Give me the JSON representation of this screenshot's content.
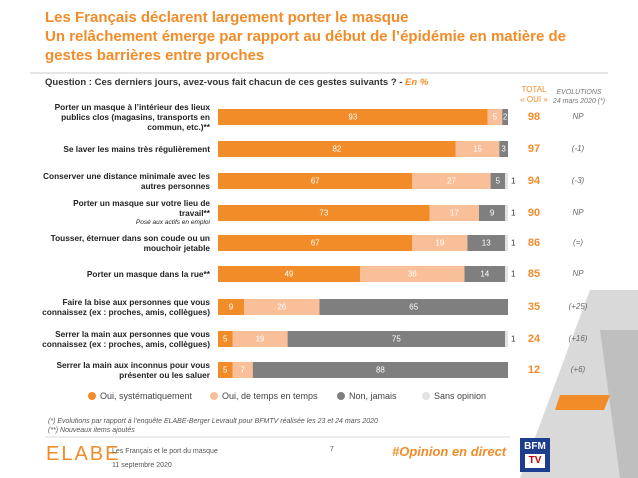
{
  "chart_data": {
    "type": "bar",
    "orientation": "horizontal",
    "stacked": true,
    "title": "Les Français déclarent largement porter le masque",
    "subtitle": "Un relâchement émerge par rapport au début de l’épidémie en matière de gestes barrières entre proches",
    "question": "Question : Ces derniers jours, avez-vous fait chacun de ces gestes suivants ? -",
    "unit": "En %",
    "categories": [
      "Porter un masque à l’intérieur des lieux publics clos (magasins, transports en commun, etc.)**",
      "Se laver les mains très régulièrement",
      "Conserver une distance minimale avec les autres personnes",
      "Porter un masque sur votre lieu de travail**",
      "Tousser, éternuer dans son coude ou un mouchoir jetable",
      "Porter un masque dans la rue**",
      "Faire la bise aux personnes que vous connaissez (ex : proches, amis, collègues)",
      "Serrer la main aux personnes que vous connaissez (ex : proches, amis, collègues)",
      "Serrer la main aux inconnus pour vous présenter ou les saluer"
    ],
    "category_notes": [
      null,
      null,
      null,
      "Posé aux actifs en emploi",
      null,
      null,
      null,
      null,
      null
    ],
    "xlim": [
      0,
      100
    ],
    "series": [
      {
        "name": "Oui, systématiquement",
        "color": "#f28c28",
        "label_color": "#ffffff",
        "values": [
          93,
          82,
          67,
          73,
          67,
          49,
          9,
          5,
          5
        ]
      },
      {
        "name": "Oui, de temps en temps",
        "color": "#f9bf98",
        "label_color": "#ffffff",
        "values": [
          5,
          15,
          27,
          17,
          19,
          36,
          26,
          19,
          7
        ]
      },
      {
        "name": "Non, jamais",
        "color": "#7f7f7f",
        "label_color": "#ffffff",
        "values": [
          2,
          3,
          5,
          9,
          13,
          14,
          65,
          75,
          88
        ]
      },
      {
        "name": "Sans opinion",
        "color": "#e3e3e3",
        "label_color": "#333333",
        "values": [
          null,
          null,
          1,
          1,
          1,
          1,
          null,
          1,
          null
        ]
      }
    ],
    "total": {
      "header": [
        "TOTAL",
        "« OUI »"
      ],
      "values": [
        98,
        97,
        94,
        90,
        86,
        85,
        35,
        24,
        12
      ]
    },
    "evolutions": {
      "header": [
        "EVOLUTIONS",
        "24 mars 2020 (*)"
      ],
      "labels": [
        "NP",
        "(-1)",
        "(-3)",
        "NP",
        "(=)",
        "NP",
        "(+25)",
        "(+16)",
        "(+6)"
      ]
    },
    "legend": "bottom"
  },
  "footnotes": [
    "(*) Evolutions par rapport à l’enquête ELABE-Berger Levrault pour BFMTV réalisée les 23 et 24 mars 2020",
    "(**) Nouveaux items ajoutés"
  ],
  "footer": {
    "brand": "ELABE",
    "subject": "Les Français et le port du masque",
    "date": "11 septembre 2020",
    "page": "7",
    "hashtag": "#Opinion en direct",
    "partner": [
      "BFM",
      "TV"
    ]
  }
}
